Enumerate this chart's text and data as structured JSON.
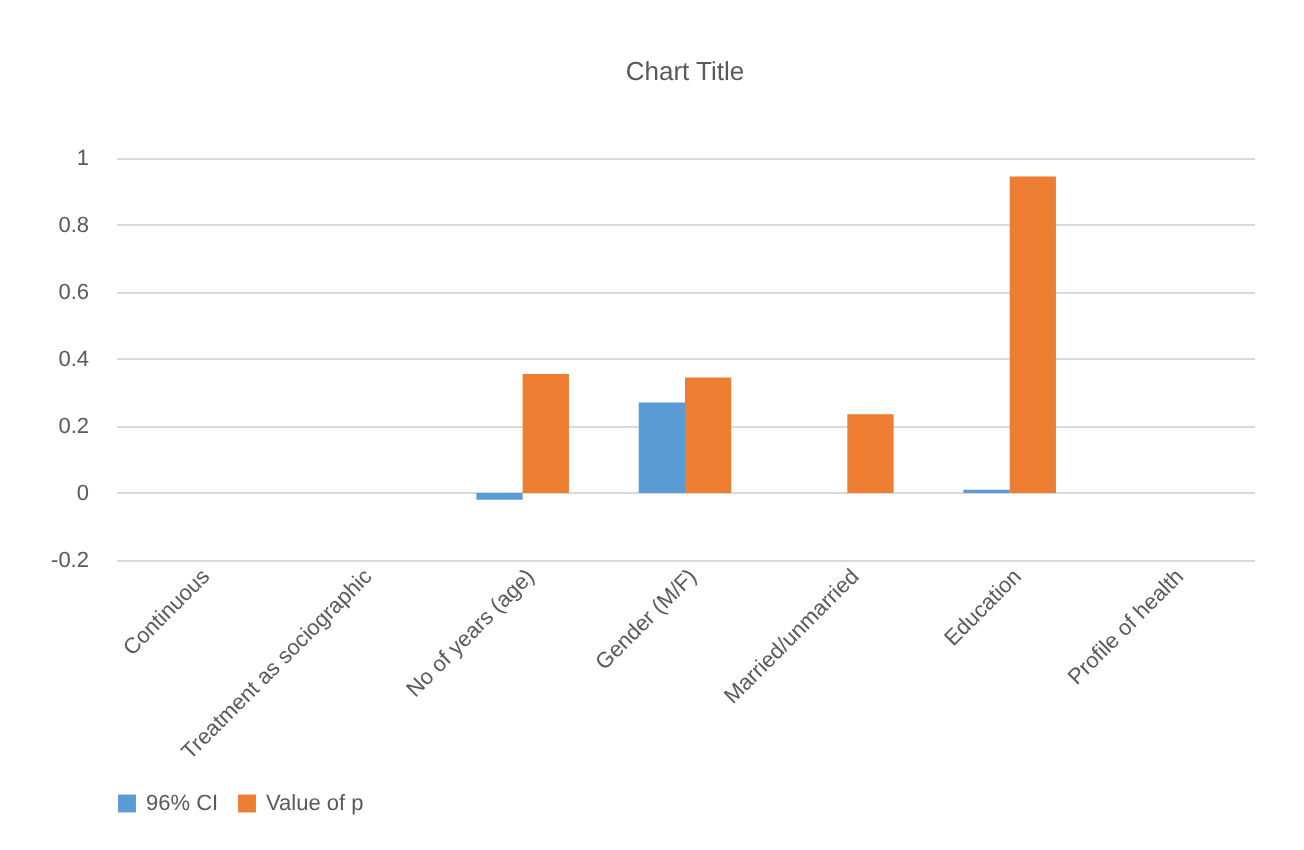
{
  "chart_data": {
    "type": "bar",
    "title": "Chart Title",
    "categories": [
      "Continuous",
      "Treatment as sociographic",
      "No of years (age)",
      "Gender (M/F)",
      "Married/unmarried",
      "Education",
      "Profile of health"
    ],
    "series": [
      {
        "name": "96% CI",
        "color": "#5b9bd5",
        "values": [
          null,
          null,
          -0.02,
          0.27,
          null,
          0.01,
          null
        ]
      },
      {
        "name": "Value of p",
        "color": "#ed7d31",
        "values": [
          null,
          null,
          0.355,
          0.345,
          0.235,
          0.945,
          null
        ]
      }
    ],
    "ylim": [
      -0.2,
      1
    ],
    "yticks": [
      -0.2,
      0,
      0.2,
      0.4,
      0.6,
      0.8,
      1
    ],
    "grid": "y",
    "legend": "bottom"
  }
}
